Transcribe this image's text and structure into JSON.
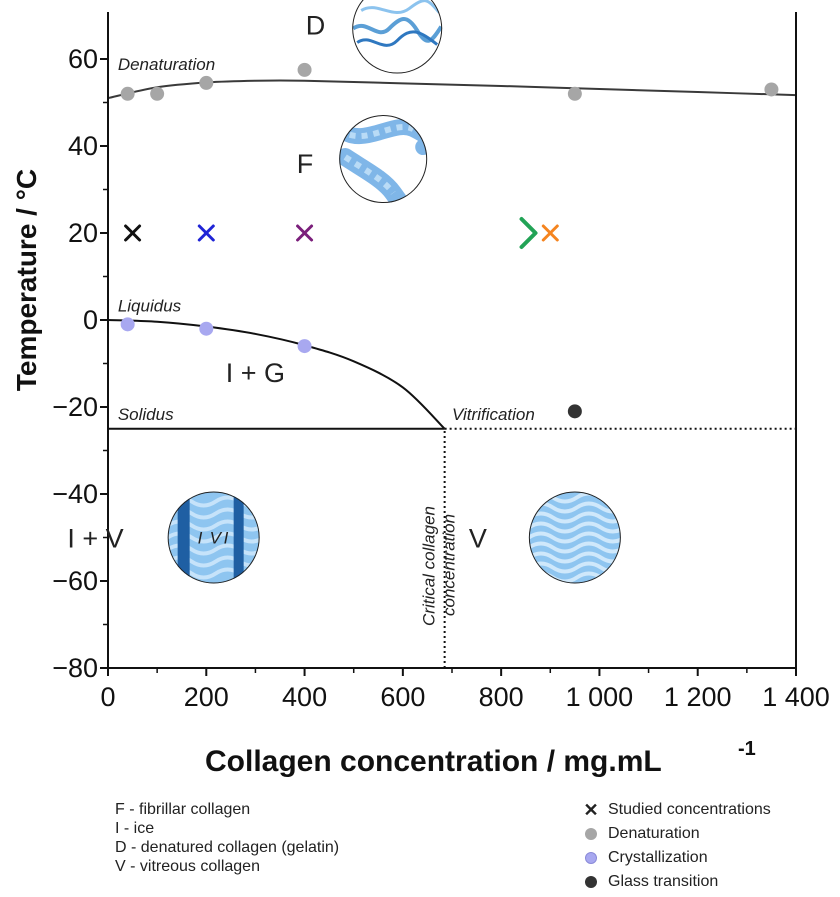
{
  "chart_data": {
    "type": "scatter",
    "xlabel": "Collagen concentration / mg.mL",
    "xlabel_sup": "-1",
    "ylabel": "Temperature / °C",
    "xlim": [
      0,
      1400
    ],
    "ylim": [
      -80,
      70
    ],
    "x_ticks": [
      0,
      200,
      400,
      600,
      800,
      1000,
      1200,
      1400
    ],
    "x_tick_labels": [
      "0",
      "200",
      "400",
      "600",
      "800",
      "1 000",
      "1 200",
      "1 400"
    ],
    "y_ticks": [
      -80,
      -60,
      -40,
      -20,
      0,
      20,
      40,
      60
    ],
    "y_tick_labels": [
      "−80",
      "−60",
      "−40",
      "−20",
      "0",
      "20",
      "40",
      "60"
    ],
    "denaturation_curve": {
      "label": "Denaturation",
      "x": [
        0,
        100,
        200,
        300,
        400,
        600,
        800,
        1000,
        1200,
        1400
      ],
      "y": [
        51,
        53.5,
        54.6,
        55,
        55,
        54.4,
        53.8,
        53.1,
        52.4,
        51.7
      ]
    },
    "liquidus_curve": {
      "label": "Liquidus",
      "x": [
        0,
        100,
        200,
        300,
        400,
        500,
        600,
        685
      ],
      "y": [
        0,
        -0.4,
        -1.5,
        -3.2,
        -5.8,
        -9.5,
        -15.5,
        -25
      ]
    },
    "solidus_line": {
      "label": "Solidus",
      "x": [
        0,
        685
      ],
      "y": [
        -25,
        -25
      ]
    },
    "vitrification_line": {
      "label": "Vitrification",
      "x": [
        685,
        1400
      ],
      "y": [
        -25,
        -25
      ]
    },
    "critical_line": {
      "label_line1": "Critical collagen",
      "label_line2": "concentration",
      "x": 685,
      "y": [
        -80,
        -25
      ]
    },
    "series": [
      {
        "name": "Denaturation",
        "color": "#a6a6a6",
        "points": [
          [
            40,
            52
          ],
          [
            100,
            52
          ],
          [
            200,
            54.5
          ],
          [
            400,
            57.5
          ],
          [
            950,
            52
          ],
          [
            1350,
            53
          ]
        ]
      },
      {
        "name": "Crystallization",
        "color": "#a8a8f0",
        "points": [
          [
            40,
            -1
          ],
          [
            200,
            -2
          ],
          [
            400,
            -6
          ]
        ]
      },
      {
        "name": "Glass transition",
        "color": "#333333",
        "points": [
          [
            950,
            -21
          ]
        ]
      }
    ],
    "studied_concentrations": {
      "name": "Studied concentrations",
      "y": 20,
      "points": [
        {
          "x": 50,
          "color": "#111111"
        },
        {
          "x": 200,
          "color": "#1f24d6"
        },
        {
          "x": 400,
          "color": "#7b1f7b"
        },
        {
          "x": 900,
          "color": "#f5841f"
        }
      ],
      "arrow": {
        "x_start": 50,
        "x_end": 870,
        "color_start": "#7ef2b4",
        "color_end": "#22a356"
      }
    },
    "regions": [
      {
        "label": "D",
        "x": 560,
        "y": 67,
        "inset": "denatured-coil"
      },
      {
        "label": "F",
        "x": 560,
        "y": 37,
        "inset": "fibrils"
      },
      {
        "label": "I + G",
        "x": 300,
        "y": -12,
        "inset": null
      },
      {
        "label": "I + V",
        "x": 215,
        "y": -50,
        "inset": "ice-vitreous"
      },
      {
        "label": "V",
        "x": 950,
        "y": -50,
        "inset": "vitreous"
      }
    ],
    "inset_labels": {
      "ice_left": "I",
      "vitreous": "V",
      "ice_right": "I"
    }
  },
  "legend_abbreviations": [
    "F - fibrillar collagen",
    "I - ice",
    "D - denatured collagen (gelatin)",
    "V - vitreous collagen"
  ],
  "legend_symbols": [
    {
      "label": "Studied concentrations",
      "symbol": "cross",
      "color": "#111111"
    },
    {
      "label": "Denaturation",
      "symbol": "dot",
      "color": "#a6a6a6"
    },
    {
      "label": "Crystallization",
      "symbol": "dot",
      "color": "#a8a8f0"
    },
    {
      "label": "Glass transition",
      "symbol": "dot",
      "color": "#333333"
    }
  ]
}
